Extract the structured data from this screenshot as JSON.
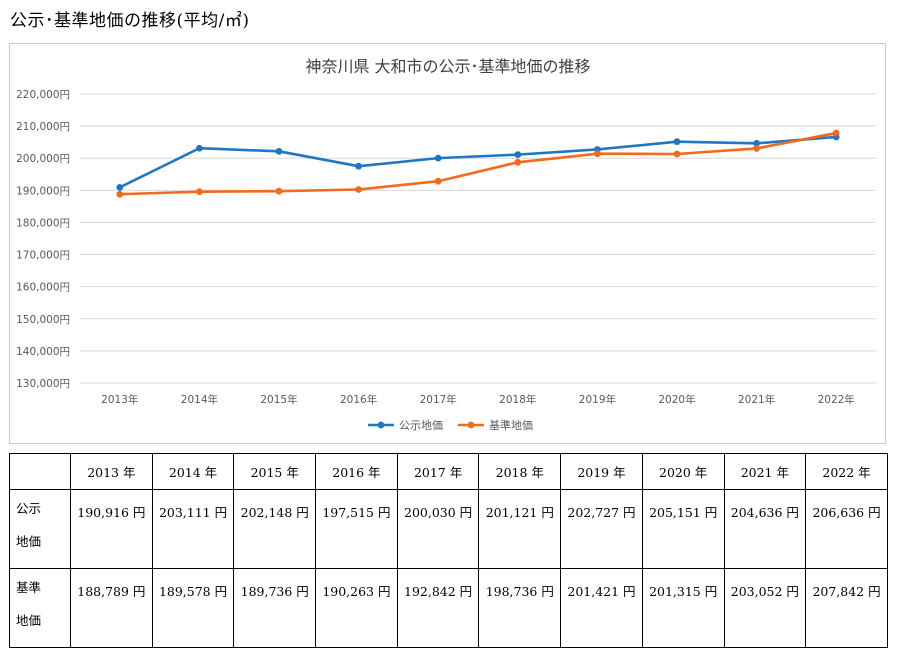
{
  "page_heading": "公示･基準地価の推移(平均/㎡)",
  "chart_data": {
    "type": "line",
    "title": "神奈川県 大和市の公示･基準地価の推移",
    "categories": [
      "2013年",
      "2014年",
      "2015年",
      "2016年",
      "2017年",
      "2018年",
      "2019年",
      "2020年",
      "2021年",
      "2022年"
    ],
    "ylim": [
      130000,
      220000
    ],
    "yticks": [
      130000,
      140000,
      150000,
      160000,
      170000,
      180000,
      190000,
      200000,
      210000,
      220000
    ],
    "ytick_labels": [
      "130,000円",
      "140,000円",
      "150,000円",
      "160,000円",
      "170,000円",
      "180,000円",
      "190,000円",
      "200,000円",
      "210,000円",
      "220,000円"
    ],
    "grid": true,
    "legend_position": "bottom",
    "series": [
      {
        "name": "公示地価",
        "color": "#1f77c4",
        "values": [
          190916,
          203111,
          202148,
          197515,
          200030,
          201121,
          202727,
          205151,
          204636,
          206636
        ]
      },
      {
        "name": "基準地価",
        "color": "#f26a1b",
        "values": [
          188789,
          189578,
          189736,
          190263,
          192842,
          198736,
          201421,
          201315,
          203052,
          207842
        ]
      }
    ]
  },
  "table": {
    "headers": [
      "",
      "2013 年",
      "2014 年",
      "2015 年",
      "2016 年",
      "2017 年",
      "2018 年",
      "2019 年",
      "2020 年",
      "2021 年",
      "2022 年"
    ],
    "rows": [
      {
        "label_lines": [
          "公示",
          "地価"
        ],
        "cells": [
          "190,916 円",
          "203,111 円",
          "202,148 円",
          "197,515 円",
          "200,030 円",
          "201,121 円",
          "202,727 円",
          "205,151 円",
          "204,636 円",
          "206,636 円"
        ]
      },
      {
        "label_lines": [
          "基準",
          "地価"
        ],
        "cells": [
          "188,789 円",
          "189,578 円",
          "189,736 円",
          "190,263 円",
          "192,842 円",
          "198,736 円",
          "201,421 円",
          "201,315 円",
          "203,052 円",
          "207,842 円"
        ]
      }
    ]
  }
}
